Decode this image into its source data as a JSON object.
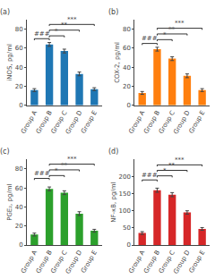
{
  "chart_data": [
    {
      "type": "bar",
      "title": "(a)",
      "ylabel": "iNOS, pg/ml",
      "categories": [
        "Group A",
        "Group B",
        "Group C",
        "Group D",
        "Group E"
      ],
      "values": [
        16,
        64,
        57,
        33,
        17
      ],
      "errors": [
        1.5,
        2.0,
        2.0,
        2.0,
        1.5
      ],
      "ylim": [
        0,
        90
      ],
      "yticks": [
        0,
        20,
        40,
        60,
        80
      ],
      "grid": false,
      "annotations": [
        {
          "text": "###",
          "x1": "Group A",
          "x2": "Group B",
          "y": 70
        },
        {
          "text": "*",
          "x1": "Group B",
          "x2": "Group C",
          "y": 73
        },
        {
          "text": "**",
          "x1": "Group B",
          "x2": "Group D",
          "y": 79
        },
        {
          "text": "***",
          "x1": "Group B",
          "x2": "Group E",
          "y": 85
        }
      ]
    },
    {
      "type": "bar",
      "title": "(b)",
      "ylabel": "COX-2, pg/ml",
      "categories": [
        "Group A",
        "Group B",
        "Group C",
        "Group D",
        "Group E"
      ],
      "values": [
        13,
        59,
        49,
        31,
        16
      ],
      "errors": [
        1.5,
        2.0,
        2.0,
        2.0,
        1.5
      ],
      "ylim": [
        0,
        90
      ],
      "yticks": [
        0,
        20,
        40,
        60,
        80
      ],
      "grid": false,
      "annotations": [
        {
          "text": "###",
          "x1": "Group A",
          "x2": "Group B",
          "y": 65
        },
        {
          "text": "*",
          "x1": "Group B",
          "x2": "Group C",
          "y": 69
        },
        {
          "text": "**",
          "x1": "Group B",
          "x2": "Group D",
          "y": 75
        },
        {
          "text": "***",
          "x1": "Group B",
          "x2": "Group E",
          "y": 81
        }
      ]
    },
    {
      "type": "bar",
      "title": "(c)",
      "ylabel": "PGE₂, pg/ml",
      "categories": [
        "Group A",
        "Group B",
        "Group C",
        "Group D",
        "Group E"
      ],
      "values": [
        11,
        59,
        55,
        33,
        15
      ],
      "errors": [
        1.5,
        2.0,
        2.0,
        2.0,
        1.5
      ],
      "ylim": [
        0,
        90
      ],
      "yticks": [
        0,
        20,
        40,
        60,
        80
      ],
      "grid": false,
      "annotations": [
        {
          "text": "###",
          "x1": "Group A",
          "x2": "Group B",
          "y": 70
        },
        {
          "text": "*",
          "x1": "Group B",
          "x2": "Group C",
          "y": 73
        },
        {
          "text": "**",
          "x1": "Group B",
          "x2": "Group D",
          "y": 79
        },
        {
          "text": "***",
          "x1": "Group B",
          "x2": "Group E",
          "y": 85
        }
      ]
    },
    {
      "type": "bar",
      "title": "(d)",
      "ylabel": "NF-κB, pg/ml",
      "categories": [
        "Group A",
        "Group B",
        "Group C",
        "Group D",
        "Group E"
      ],
      "values": [
        35,
        160,
        147,
        95,
        47
      ],
      "errors": [
        4,
        6,
        6,
        5,
        4
      ],
      "ylim": [
        0,
        250
      ],
      "yticks": [
        0,
        50,
        100,
        150,
        200
      ],
      "grid": false,
      "annotations": [
        {
          "text": "###",
          "x1": "Group A",
          "x2": "Group B",
          "y": 190
        },
        {
          "text": "*",
          "x1": "Group B",
          "x2": "Group C",
          "y": 202
        },
        {
          "text": "**",
          "x1": "Group B",
          "x2": "Group D",
          "y": 218
        },
        {
          "text": "***",
          "x1": "Group B",
          "x2": "Group E",
          "y": 234
        }
      ]
    }
  ]
}
